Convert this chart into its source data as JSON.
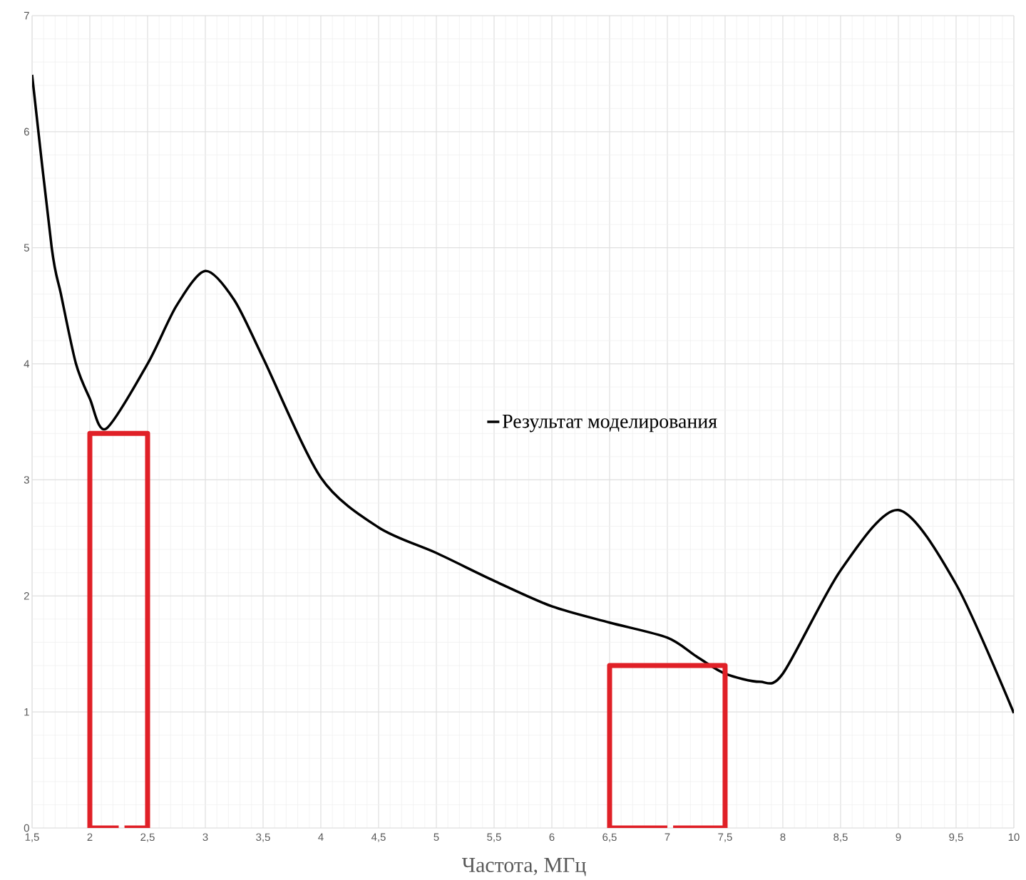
{
  "chart_data": {
    "type": "line",
    "xlabel": "Частота, МГц",
    "x": [
      1.5,
      1.67,
      1.75,
      1.88,
      2.0,
      2.14,
      2.5,
      2.75,
      3.0,
      3.25,
      3.5,
      4.0,
      4.5,
      5.0,
      5.5,
      6.0,
      6.5,
      7.0,
      7.25,
      7.5,
      7.8,
      8.0,
      8.5,
      9.0,
      9.5,
      10.0
    ],
    "series": [
      {
        "name": "Результат моделирования",
        "color": "#000000",
        "values": [
          6.49,
          5.0,
          4.6,
          4.0,
          3.7,
          3.44,
          4.0,
          4.5,
          4.8,
          4.55,
          4.05,
          3.02,
          2.59,
          2.37,
          2.13,
          1.91,
          1.77,
          1.64,
          1.48,
          1.33,
          1.26,
          1.33,
          2.22,
          2.74,
          2.1,
          0.99
        ]
      },
      {
        "color": "#e02027",
        "x": [
          2.25,
          2,
          2,
          2.5,
          2.5,
          2.3
        ],
        "values": [
          0,
          0,
          3.4,
          3.4,
          0,
          0
        ]
      },
      {
        "color": "#e02027",
        "x": [
          7,
          6.5,
          6.5,
          7.5,
          7.5,
          7.05
        ],
        "values": [
          0,
          0,
          1.4,
          1.4,
          0,
          0
        ]
      }
    ],
    "xlim": [
      1.5,
      10
    ],
    "ylim": [
      0,
      7
    ],
    "xticks": [
      {
        "value": 1.5,
        "label": "1,5"
      },
      2,
      {
        "value": 2.5,
        "label": "2,5"
      },
      3,
      {
        "value": 3.5,
        "label": "3,5"
      },
      4,
      {
        "value": 4.5,
        "label": "4,5"
      },
      5,
      {
        "value": 5.5,
        "label": "5,5"
      },
      6,
      {
        "value": 6.5,
        "label": "6,5"
      },
      7,
      {
        "value": 7.5,
        "label": "7,5"
      },
      8,
      {
        "value": 8.5,
        "label": "8,5"
      },
      9,
      {
        "value": 9.5,
        "label": "9,5"
      },
      10
    ],
    "yticks": [
      0,
      1,
      2,
      3,
      4,
      5,
      6,
      7
    ],
    "grid": true,
    "legend": "center",
    "marker": "none",
    "line_style": "solid"
  }
}
